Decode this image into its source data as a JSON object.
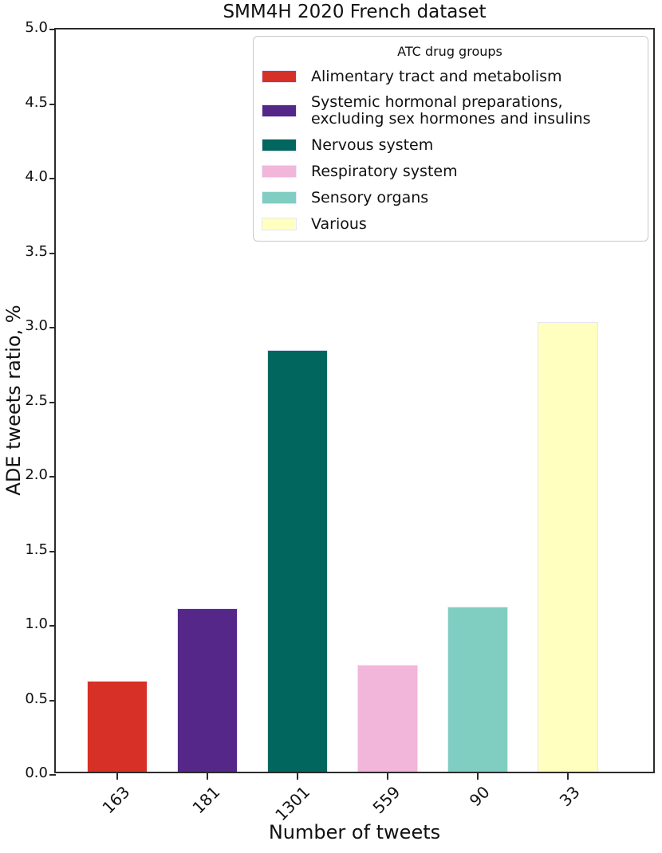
{
  "chart_data": {
    "type": "bar",
    "title": "SMM4H 2020 French dataset",
    "xlabel": "Number of tweets",
    "ylabel": "ADE tweets ratio, %",
    "ylim": [
      0.0,
      5.0
    ],
    "grid": false,
    "legend_position": "upper-right-inside",
    "categories": [
      "163",
      "181",
      "1301",
      "559",
      "90",
      "33"
    ],
    "values": [
      0.61,
      1.1,
      2.84,
      0.72,
      1.11,
      3.03
    ],
    "bar_colors": [
      "#d73027",
      "#542788",
      "#01665e",
      "#f1b6da",
      "#80cdc1",
      "#ffffbf"
    ],
    "bar_edge_color": "#e6e6fa",
    "y_ticks": [
      "0.0",
      "0.5",
      "1.0",
      "1.5",
      "2.0",
      "2.5",
      "3.0",
      "3.5",
      "4.0",
      "4.5",
      "5.0"
    ],
    "legend": {
      "title": "ATC drug groups",
      "entries": [
        {
          "label": "Alimentary tract and metabolism",
          "color": "#d73027"
        },
        {
          "label": "Systemic hormonal preparations,\nexcluding sex hormones and insulins",
          "color": "#542788"
        },
        {
          "label": "Nervous system",
          "color": "#01665e"
        },
        {
          "label": "Respiratory system",
          "color": "#f1b6da"
        },
        {
          "label": "Sensory organs",
          "color": "#80cdc1"
        },
        {
          "label": "Various",
          "color": "#ffffbf"
        }
      ]
    }
  }
}
